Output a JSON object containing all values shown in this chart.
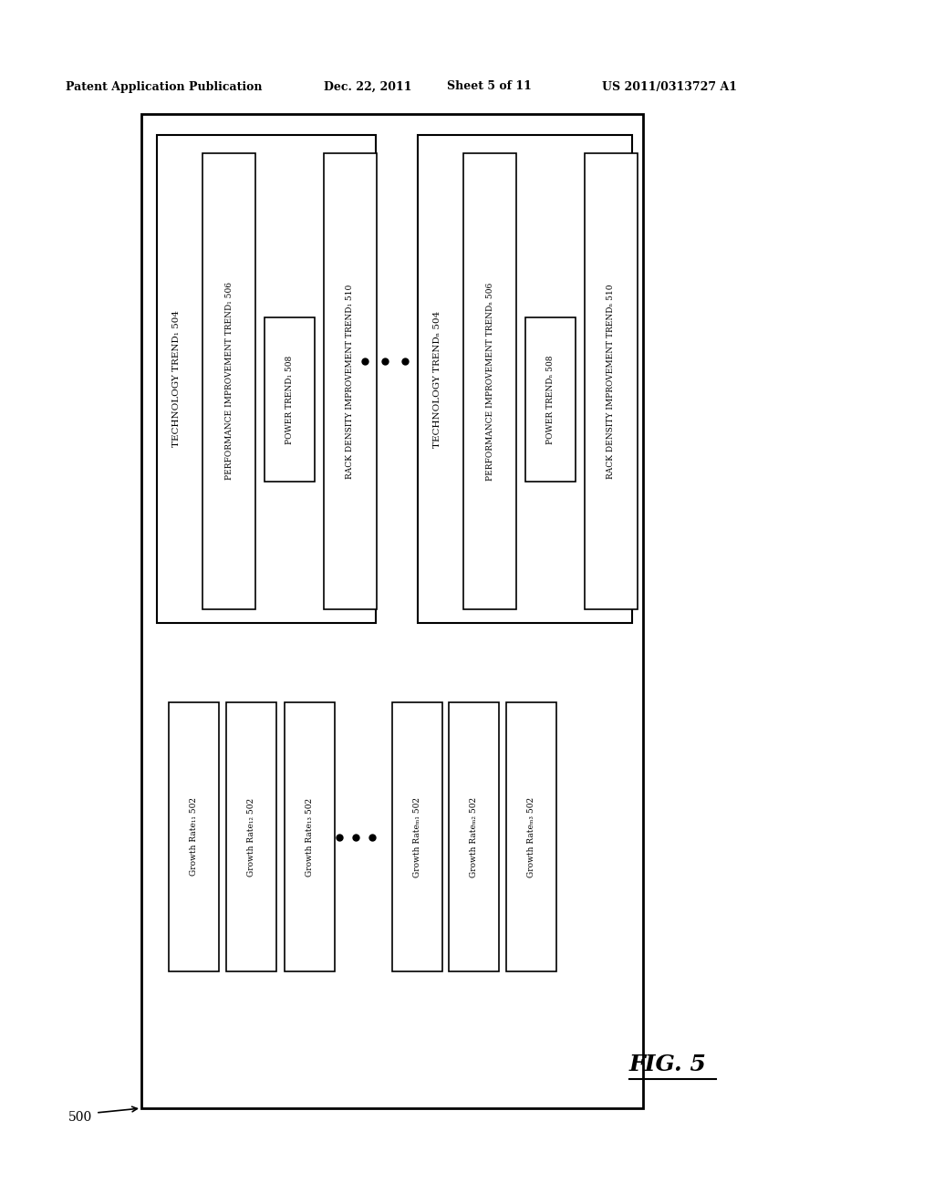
{
  "bg_color": "#ffffff",
  "header_text": "Patent Application Publication",
  "header_date": "Dec. 22, 2011",
  "header_sheet": "Sheet 5 of 11",
  "header_patent": "US 2011/0313727 A1",
  "fig_label": "FIG. 5",
  "outer_box_label": "500",
  "tech_trend_1_label": "TECHNOLOGY TREND₁ 504",
  "tech_trend_N_label": "TECHNOLOGY TRENDₙ 504",
  "perf_trend_1_label": "PERFORMANCE IMPROVEMENT TREND₁ 506",
  "perf_trend_N_label": "PERFORMANCE IMPROVEMENT TRENDₙ 506",
  "power_trend_1_label": "POWER TREND₁ 508",
  "power_trend_N_label": "POWER TRENDₙ 508",
  "rack_trend_1_label": "RACK DENSITY IMPROVEMENT TREND₁ 510",
  "rack_trend_N_label": "RACK DENSITY IMPROVEMENT TRENDₙ 510",
  "growth_labels": [
    "Growth Rate₁₁ 502",
    "Growth Rate₁₂ 502",
    "Growth Rate₁₃ 502",
    "Growth Rateₘ₁ 502",
    "Growth Rateₘ₂ 502",
    "Growth Rateₘ₃ 502"
  ]
}
